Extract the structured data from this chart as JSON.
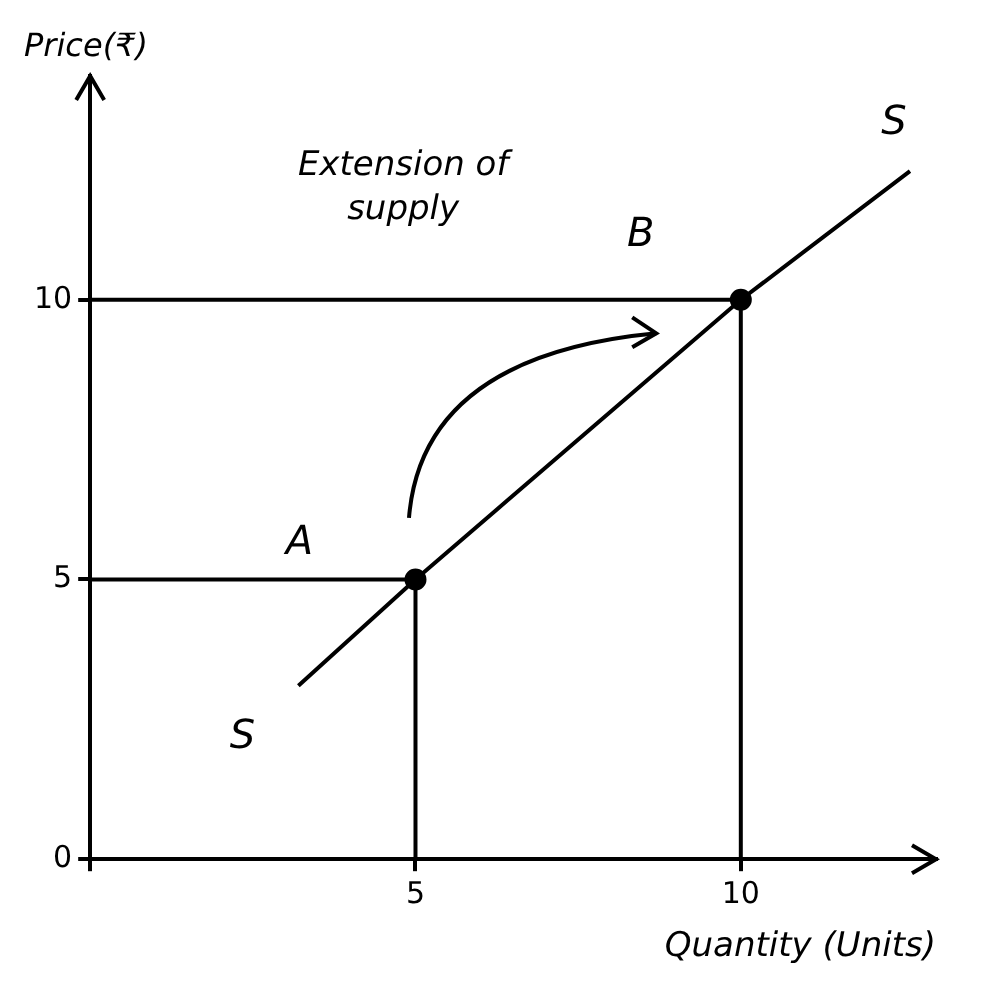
{
  "chart_data": {
    "type": "line",
    "xlabel": "Quantity (Units)",
    "ylabel": "Price(₹)",
    "xlim": [
      0,
      13
    ],
    "ylim": [
      0,
      14
    ],
    "xticks": [
      {
        "value": 0,
        "label": null
      },
      5,
      10
    ],
    "yticks": [
      0,
      5,
      10
    ],
    "grid": false,
    "legend": false,
    "series": [
      {
        "color": "#000000",
        "x": [
          3.2,
          5,
          10,
          12.6
        ],
        "values": [
          3.1,
          5,
          10,
          12.3
        ],
        "marker": "none"
      },
      {
        "color": "#000000",
        "x": [
          0,
          5,
          5
        ],
        "values": [
          5,
          5,
          0
        ],
        "marker": "none"
      },
      {
        "color": "#000000",
        "x": [
          0,
          10,
          10
        ],
        "values": [
          10,
          10,
          0
        ],
        "marker": "none"
      },
      {
        "type": "scatter",
        "color": "#000000",
        "x": [
          5,
          10
        ],
        "values": [
          5,
          10
        ],
        "marker": "circle"
      }
    ],
    "annotations": [
      "Extension of supply",
      {
        "text": "A",
        "x": 5,
        "y": 5
      },
      {
        "text": "B",
        "x": 10,
        "y": 10
      },
      {
        "text": "S",
        "x": 3.2,
        "y": 3.1
      },
      {
        "text": "S",
        "x": 12.6,
        "y": 12.3
      }
    ]
  }
}
